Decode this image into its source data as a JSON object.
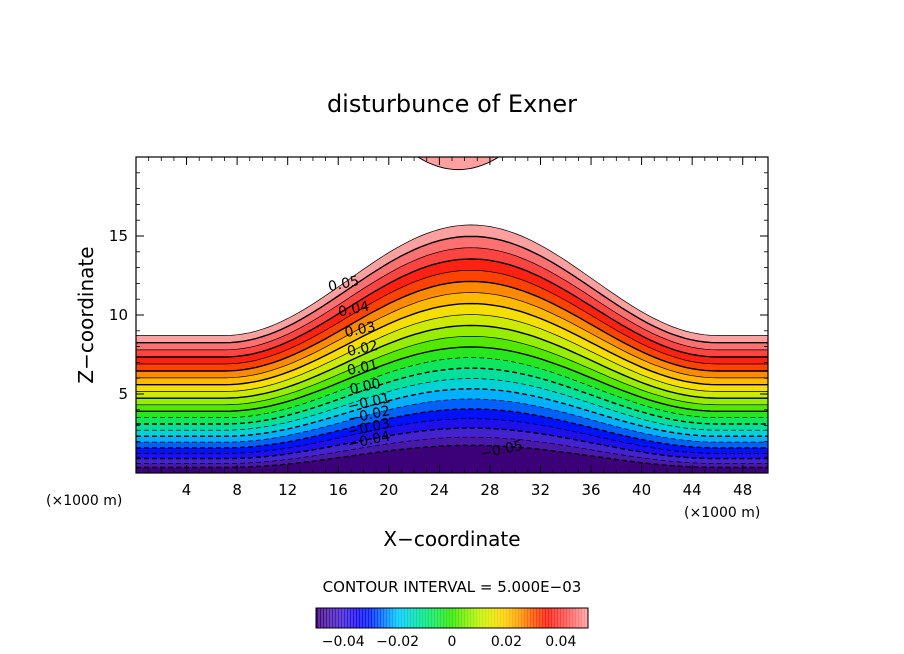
{
  "chart_data": {
    "type": "contour",
    "title": "disturbunce of Exner",
    "xlabel": "X−coordinate",
    "ylabel": "Z−coordinate",
    "x_unit_left": "(×1000 m)",
    "x_unit_right": "(×1000 m)",
    "xlim": [
      0,
      50
    ],
    "ylim": [
      0,
      20
    ],
    "xticks": [
      4,
      8,
      12,
      16,
      20,
      24,
      28,
      32,
      36,
      40,
      44,
      48
    ],
    "xtick_labels": [
      "4",
      "8",
      "12",
      "16",
      "20",
      "24",
      "28",
      "32",
      "36",
      "40",
      "44",
      "48"
    ],
    "yticks": [
      5,
      10,
      15
    ],
    "ytick_labels": [
      "5",
      "10",
      "15"
    ],
    "contour_interval_text": "CONTOUR INTERVAL = 5.000E−03",
    "contour_interval": 0.005,
    "levels": [
      -0.05,
      -0.045,
      -0.04,
      -0.035,
      -0.03,
      -0.025,
      -0.02,
      -0.015,
      -0.01,
      -0.005,
      0.0,
      0.005,
      0.01,
      0.015,
      0.02,
      0.025,
      0.03,
      0.035,
      0.04,
      0.045,
      0.05,
      0.055
    ],
    "contour_labels": [
      {
        "text": "0.05",
        "x": 16.5,
        "y": 11.7
      },
      {
        "text": "0.04",
        "x": 17.3,
        "y": 10.1
      },
      {
        "text": "0.03",
        "x": 17.8,
        "y": 8.8
      },
      {
        "text": "0.02",
        "x": 18.0,
        "y": 7.6
      },
      {
        "text": "0.01",
        "x": 18.0,
        "y": 6.4
      },
      {
        "text": "0.00",
        "x": 18.2,
        "y": 5.2
      },
      {
        "text": "−0.01",
        "x": 18.5,
        "y": 4.2
      },
      {
        "text": "−0.02",
        "x": 18.5,
        "y": 3.4
      },
      {
        "text": "−0.03",
        "x": 18.5,
        "y": 2.6
      },
      {
        "text": "−0.04",
        "x": 18.5,
        "y": 1.8
      },
      {
        "text": "−0.05",
        "x": 29.0,
        "y": 1.2
      }
    ],
    "colorbar": {
      "range": [
        -0.05,
        0.05
      ],
      "tick_labels": [
        "−0.04",
        "−0.02",
        "0",
        "0.02",
        "0.04"
      ],
      "tick_values": [
        -0.04,
        -0.02,
        0,
        0.02,
        0.04
      ]
    },
    "colors": {
      "background": "#ffffff",
      "contour_line": "#000000",
      "outside_fill": "#ffffff"
    }
  }
}
